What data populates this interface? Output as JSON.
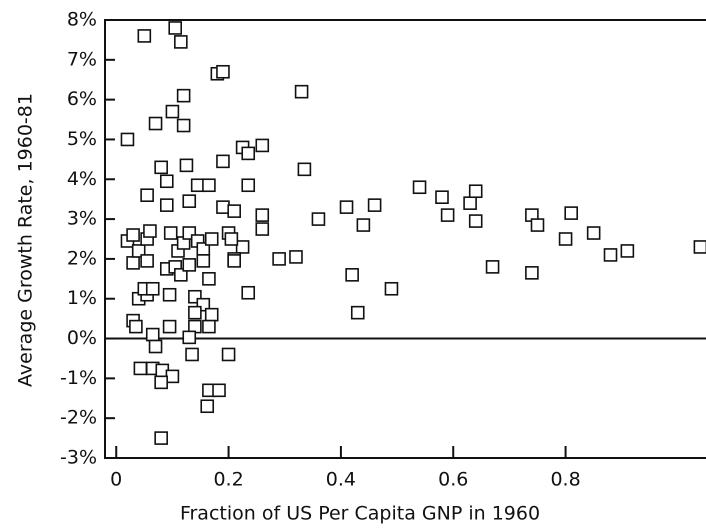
{
  "chart_data": {
    "type": "scatter",
    "x_label": "Fraction of US Per Capita GNP in 1960",
    "y_label": "Average Growth Rate, 1960-81",
    "xlim": [
      -0.02,
      1.05
    ],
    "ylim": [
      -3,
      8
    ],
    "xticks": [
      0,
      0.2,
      0.4,
      0.6,
      0.8
    ],
    "yticks": [
      {
        "value": -3,
        "label": "-3%"
      },
      {
        "value": -2,
        "label": "-2%"
      },
      {
        "value": -1,
        "label": "-1%"
      },
      {
        "value": 0,
        "label": "0%"
      },
      {
        "value": 1,
        "label": "1%"
      },
      {
        "value": 2,
        "label": "2%"
      },
      {
        "value": 3,
        "label": "3%"
      },
      {
        "value": 4,
        "label": "4%"
      },
      {
        "value": 5,
        "label": "5%"
      },
      {
        "value": 6,
        "label": "6%"
      },
      {
        "value": 7,
        "label": "7%"
      },
      {
        "value": 8,
        "label": "8%"
      }
    ],
    "zero_line": true,
    "color": "#111111",
    "x": [
      0.02,
      0.05,
      0.105,
      0.115,
      0.18,
      0.19,
      0.12,
      0.1,
      0.12,
      0.07,
      0.33,
      0.08,
      0.125,
      0.19,
      0.225,
      0.235,
      0.26,
      0.055,
      0.09,
      0.145,
      0.165,
      0.235,
      0.335,
      0.13,
      0.09,
      0.19,
      0.21,
      0.26,
      0.36,
      0.41,
      0.46,
      0.44,
      0.54,
      0.58,
      0.59,
      0.63,
      0.64,
      0.64,
      0.74,
      0.75,
      0.81,
      0.8,
      0.85,
      0.88,
      0.91,
      1.04,
      0.67,
      0.74,
      0.42,
      0.43,
      0.49,
      0.29,
      0.32,
      0.26,
      0.225,
      0.21,
      0.235,
      0.02,
      0.03,
      0.03,
      0.04,
      0.055,
      0.06,
      0.055,
      0.04,
      0.055,
      0.05,
      0.065,
      0.03,
      0.035,
      0.065,
      0.09,
      0.095,
      0.095,
      0.07,
      0.11,
      0.12,
      0.13,
      0.105,
      0.115,
      0.13,
      0.145,
      0.155,
      0.17,
      0.155,
      0.165,
      0.14,
      0.155,
      0.14,
      0.14,
      0.17,
      0.165,
      0.13,
      0.135,
      0.2,
      0.097,
      0.2,
      0.205,
      0.21,
      0.043,
      0.065,
      0.082,
      0.1,
      0.08,
      0.165,
      0.183,
      0.162,
      0.08
    ],
    "values": [
      5.0,
      7.6,
      7.8,
      7.45,
      6.65,
      6.7,
      6.1,
      5.7,
      5.35,
      5.4,
      6.2,
      4.3,
      4.35,
      4.45,
      4.8,
      4.65,
      4.85,
      3.6,
      3.95,
      3.85,
      3.85,
      3.85,
      4.25,
      3.45,
      3.35,
      3.3,
      3.2,
      3.1,
      3.0,
      3.3,
      3.35,
      2.85,
      3.8,
      3.55,
      3.1,
      3.4,
      3.7,
      2.95,
      3.1,
      2.85,
      3.15,
      2.5,
      2.65,
      2.1,
      2.2,
      2.3,
      1.8,
      1.65,
      1.6,
      0.65,
      1.25,
      2.0,
      2.05,
      2.75,
      2.3,
      2.0,
      1.15,
      2.45,
      2.6,
      1.9,
      2.2,
      2.5,
      2.7,
      1.95,
      1.0,
      1.1,
      1.25,
      1.25,
      0.45,
      0.3,
      0.1,
      1.75,
      1.1,
      0.3,
      -0.2,
      2.2,
      2.4,
      2.65,
      1.8,
      1.6,
      1.85,
      2.45,
      2.25,
      2.5,
      1.95,
      1.5,
      1.05,
      0.85,
      0.65,
      0.3,
      0.6,
      0.3,
      0.03,
      -0.4,
      -0.4,
      2.65,
      2.65,
      2.5,
      1.95,
      -0.75,
      -0.75,
      -0.8,
      -0.95,
      -1.1,
      -1.3,
      -1.3,
      -1.7,
      -2.5
    ]
  }
}
